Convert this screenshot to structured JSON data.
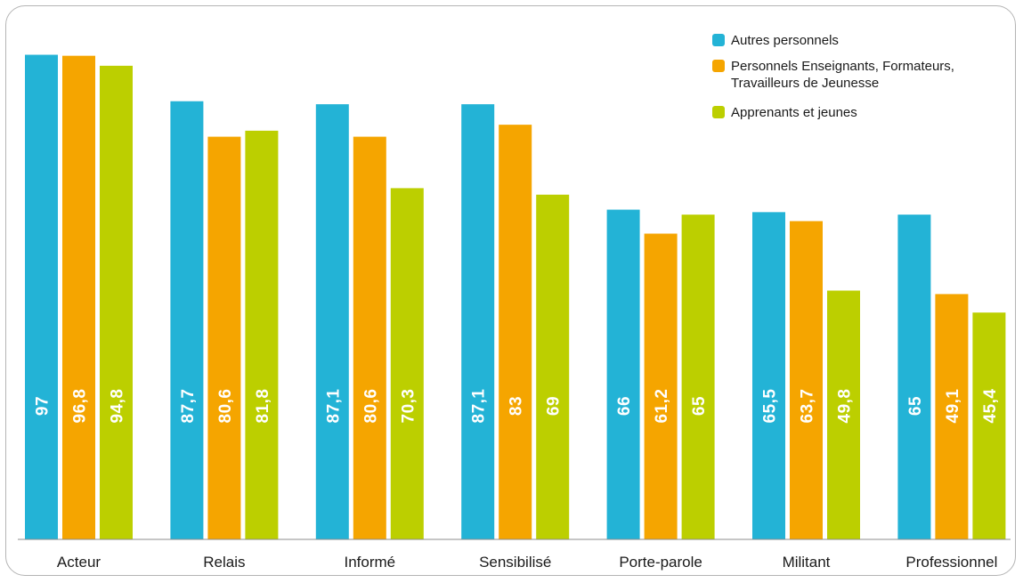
{
  "colors": {
    "autres": "#23b3d6",
    "enseignants": "#f5a500",
    "apprenants": "#bccf00",
    "frame": "#b4b4b4",
    "axis": "#8c8c8c"
  },
  "chart_data": {
    "type": "bar",
    "title": "",
    "xlabel": "",
    "ylabel": "",
    "ylim": [
      0,
      100
    ],
    "grid": false,
    "legend_position": "top-right",
    "categories": [
      "Acteur",
      "Relais",
      "Informé",
      "Sensibilisé",
      "Porte-parole",
      "Militant",
      "Professionnel"
    ],
    "series": [
      {
        "name": "Autres personnels",
        "color": "#23b3d6",
        "values": [
          97,
          87.7,
          87.1,
          87.1,
          66,
          65.5,
          65
        ],
        "labels": [
          "97",
          "87,7",
          "87,1",
          "87,1",
          "66",
          "65,5",
          "65"
        ]
      },
      {
        "name": "Personnels Enseignants, Formateurs, Travailleurs de Jeunesse",
        "name_lines": [
          "Personnels Enseignants, Formateurs,",
          "Travailleurs de Jeunesse"
        ],
        "color": "#f5a500",
        "values": [
          96.8,
          80.6,
          80.6,
          83,
          61.2,
          63.7,
          49.1
        ],
        "labels": [
          "96,8",
          "80,6",
          "80,6",
          "83",
          "61,2",
          "63,7",
          "49,1"
        ]
      },
      {
        "name": "Apprenants et jeunes",
        "color": "#bccf00",
        "values": [
          94.8,
          81.8,
          70.3,
          69,
          65,
          49.8,
          45.4
        ],
        "labels": [
          "94,8",
          "81,8",
          "70,3",
          "69",
          "65",
          "49,8",
          "45,4"
        ]
      }
    ]
  }
}
